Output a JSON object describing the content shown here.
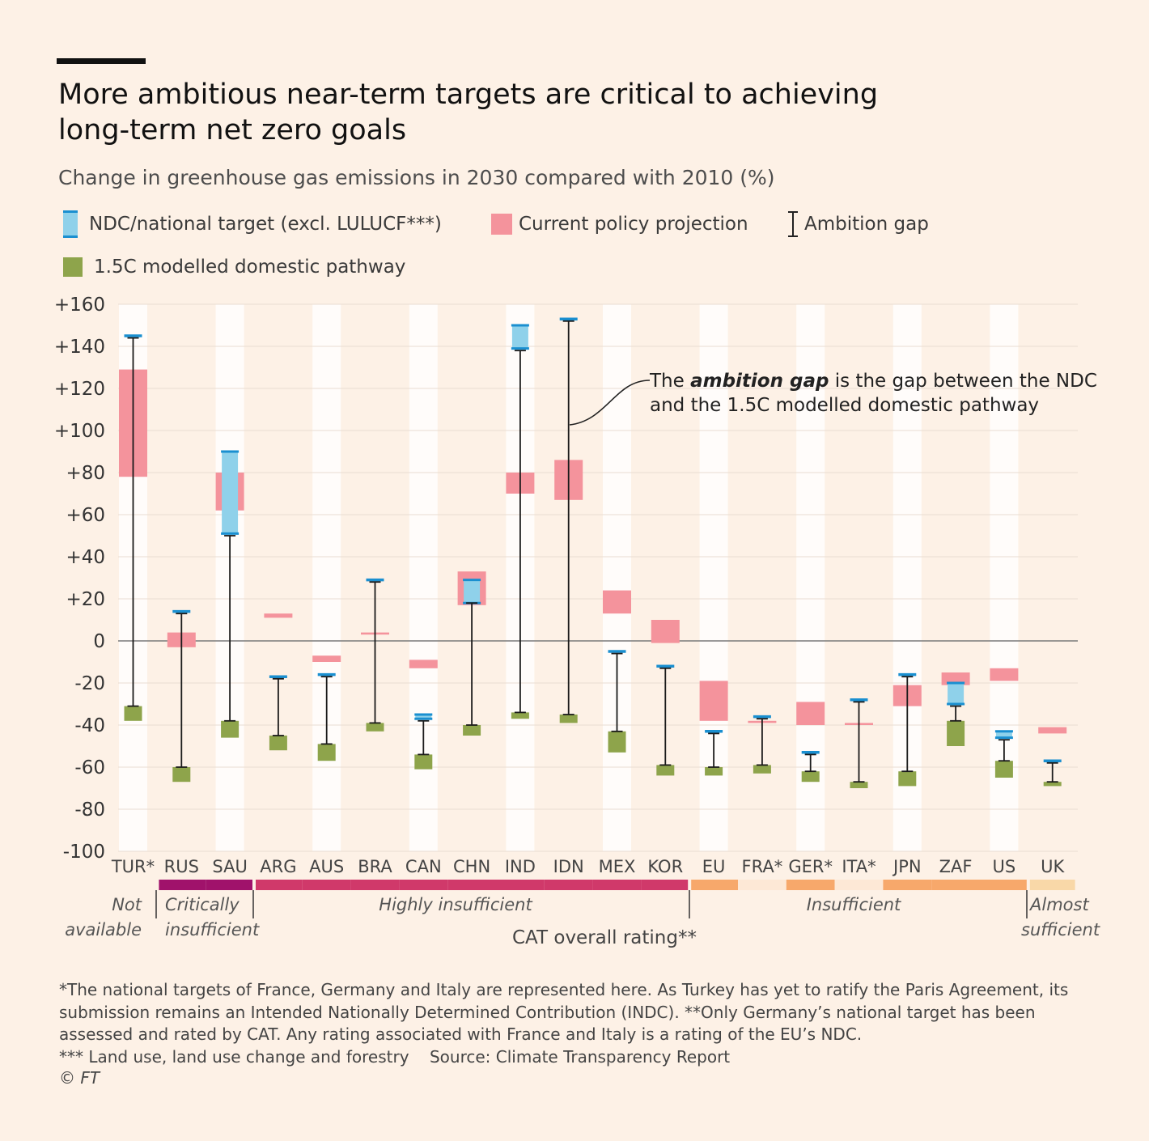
{
  "title": "More ambitious near-term targets are critical to achieving long-term net zero goals",
  "subtitle": "Change in greenhouse gas emissions in 2030 compared with 2010 (%)",
  "legend": {
    "ndc": "NDC/national target (excl. LULUCF***)",
    "current": "Current policy projection",
    "gap": "Ambition gap",
    "pathway": "1.5C modelled domestic pathway"
  },
  "colors": {
    "ndc_fill": "#8fd1ea",
    "ndc_edge": "#1a8fd0",
    "current": "#f4939c",
    "pathway": "#8ea44b",
    "band": "#ffffff"
  },
  "annotation": {
    "pre": "The ",
    "bold": "ambition gap",
    "post": " is the gap between the NDC",
    "line2": "and the 1.5C modelled domestic pathway"
  },
  "ratings": {
    "not_available_1": "Not",
    "not_available_2": "available",
    "critical_1": "Critically",
    "critical_2": "insufficient",
    "highly": "Highly insufficient",
    "insufficient": "Insufficient",
    "almost_1": "Almost",
    "almost_2": "sufficient",
    "axis_label": "CAT overall rating**"
  },
  "footnote": "*The national targets of France, Germany and Italy are represented here. As Turkey has yet to ratify the Paris Agreement, its submission remains an Intended Nationally Determined Contribution (INDC). **Only Germany’s national target has been assessed and rated by CAT. Any rating associated with France and Italy is a rating of the EU’s NDC.",
  "footnote2": "*** Land use, land use change and forestry",
  "source": "Source: Climate Transparency Report",
  "copyright": "© FT",
  "chart_data": {
    "type": "range",
    "ylim": [
      -100,
      160
    ],
    "yticks": [
      160,
      140,
      120,
      100,
      80,
      60,
      40,
      20,
      0,
      -20,
      -40,
      -60,
      -80,
      -100
    ],
    "ytick_labels": [
      "+160",
      "+140",
      "+120",
      "+100",
      "+80",
      "+60",
      "+40",
      "+20",
      "0",
      "-20",
      "-40",
      "-60",
      "-80",
      "-100"
    ],
    "categories": [
      "TUR*",
      "RUS",
      "SAU",
      "ARG",
      "AUS",
      "BRA",
      "CAN",
      "CHN",
      "IND",
      "IDN",
      "MEX",
      "KOR",
      "EU",
      "FRA*",
      "GER*",
      "ITA*",
      "JPN",
      "ZAF",
      "US",
      "UK"
    ],
    "series": [
      {
        "name": "NDC/national target (excl. LULUCF***)",
        "values": [
          [
            145,
            145
          ],
          [
            14,
            14
          ],
          [
            51,
            90
          ],
          [
            -17,
            -17
          ],
          [
            -16,
            -16
          ],
          [
            29,
            29
          ],
          [
            -35,
            -37
          ],
          [
            18,
            29
          ],
          [
            139,
            150
          ],
          [
            153,
            153
          ],
          [
            -5,
            -5
          ],
          [
            -12,
            -12
          ],
          [
            -43,
            -43
          ],
          [
            -36,
            -36
          ],
          [
            -53,
            -53
          ],
          [
            -28,
            -28
          ],
          [
            -16,
            -16
          ],
          [
            -20,
            -30
          ],
          [
            -43,
            -46
          ],
          [
            -57,
            -57
          ]
        ]
      },
      {
        "name": "Current policy projection",
        "values": [
          [
            78,
            129
          ],
          [
            -3,
            4
          ],
          [
            62,
            80
          ],
          [
            11,
            13
          ],
          [
            -10,
            -7
          ],
          [
            3,
            4
          ],
          [
            -13,
            -9
          ],
          [
            17,
            33
          ],
          [
            70,
            80
          ],
          [
            67,
            86
          ],
          [
            13,
            24
          ],
          [
            -1,
            10
          ],
          [
            -38,
            -19
          ],
          [
            -38,
            -39
          ],
          [
            -40,
            -29
          ],
          [
            -39,
            -40
          ],
          [
            -31,
            -21
          ],
          [
            -21,
            -15
          ],
          [
            -19,
            -13
          ],
          [
            -44,
            -41
          ]
        ]
      },
      {
        "name": "1.5C modelled domestic pathway",
        "values": [
          [
            -31,
            -38
          ],
          [
            -60,
            -67
          ],
          [
            -38,
            -46
          ],
          [
            -45,
            -52
          ],
          [
            -49,
            -57
          ],
          [
            -39,
            -43
          ],
          [
            -54,
            -61
          ],
          [
            -40,
            -45
          ],
          [
            -34,
            -37
          ],
          [
            -35,
            -39
          ],
          [
            -43,
            -53
          ],
          [
            -59,
            -64
          ],
          [
            -60,
            -64
          ],
          [
            -59,
            -63
          ],
          [
            -62,
            -67
          ],
          [
            -67,
            -70
          ],
          [
            -62,
            -69
          ],
          [
            -38,
            -50
          ],
          [
            -57,
            -65
          ],
          [
            -67,
            -69
          ]
        ]
      },
      {
        "name": "Ambition gap",
        "values": [
          [
            144,
            -31
          ],
          [
            13,
            -60
          ],
          [
            50,
            -38
          ],
          [
            -18,
            -45
          ],
          [
            -17,
            -49
          ],
          [
            28,
            -39
          ],
          [
            -38,
            -54
          ],
          [
            18,
            -40
          ],
          [
            138,
            -34
          ],
          [
            152,
            -35
          ],
          [
            -6,
            -43
          ],
          [
            -13,
            -59
          ],
          [
            -44,
            -60
          ],
          [
            -37,
            -59
          ],
          [
            -54,
            -62
          ],
          [
            -29,
            -67
          ],
          [
            -17,
            -62
          ],
          [
            -31,
            -38
          ],
          [
            -47,
            -57
          ],
          [
            -58,
            -67
          ]
        ]
      }
    ],
    "rating_groups": [
      {
        "label": "Not available",
        "from": "TUR*",
        "to": "TUR*",
        "color": null
      },
      {
        "label": "Critically insufficient",
        "from": "RUS",
        "to": "SAU",
        "color": "#a0126b"
      },
      {
        "label": "Highly insufficient",
        "from": "ARG",
        "to": "KOR",
        "color": "#d0396a"
      },
      {
        "label": "Insufficient",
        "from": "EU",
        "to": "US",
        "color": "#f7a86b",
        "light": [
          "FRA*",
          "ITA*"
        ],
        "light_color": "#fde8d6"
      },
      {
        "label": "Almost sufficient",
        "from": "UK",
        "to": "UK",
        "color": "#f9d8a8"
      }
    ]
  }
}
